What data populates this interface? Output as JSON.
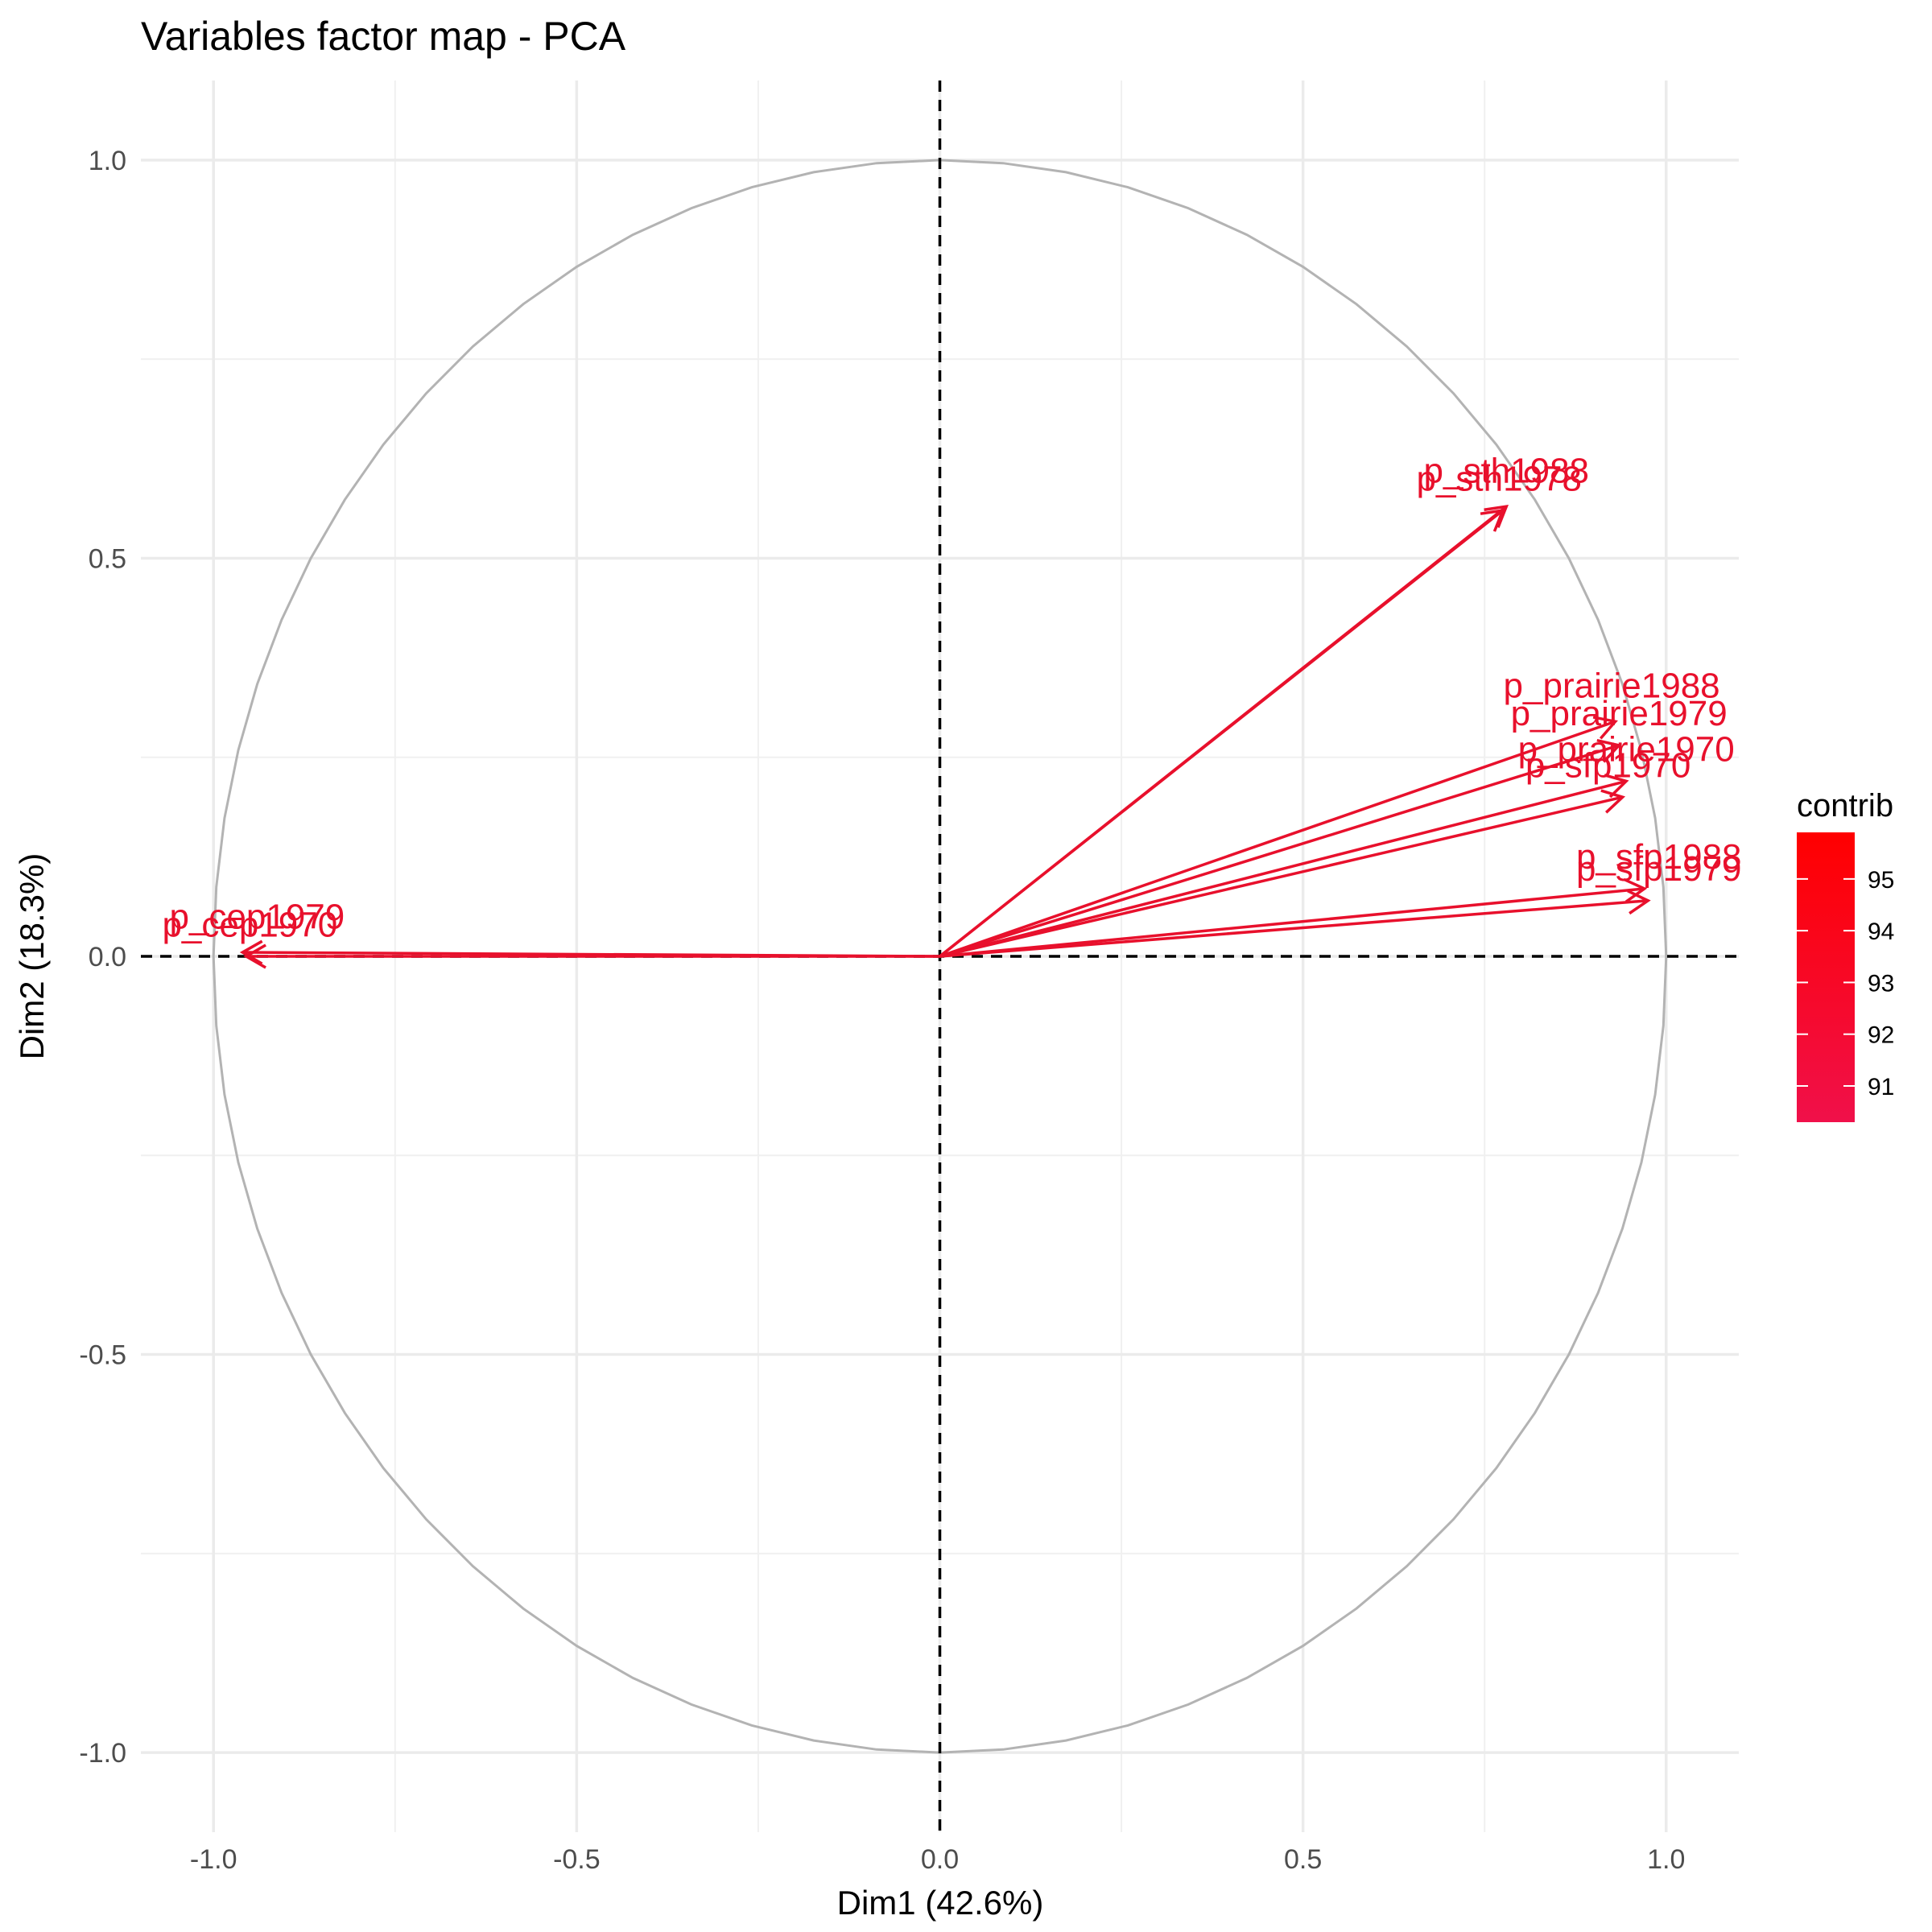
{
  "chart_data": {
    "type": "scatter",
    "title": "Variables factor map - PCA",
    "xlabel": "Dim1 (42.6%)",
    "ylabel": "Dim2 (18.3%)",
    "xlim": [
      -1.1,
      1.1
    ],
    "ylim": [
      -1.1,
      1.1
    ],
    "x_ticks": [
      -1.0,
      -0.5,
      0.0,
      0.5,
      1.0
    ],
    "y_ticks": [
      -1.0,
      -0.5,
      0.0,
      0.5,
      1.0
    ],
    "x_tick_labels": [
      "-1.0",
      "-0.5",
      "0.0",
      "0.5",
      "1.0"
    ],
    "y_tick_labels": [
      "-1.0",
      "-0.5",
      "0.0",
      "0.5",
      "1.0"
    ],
    "grid": true,
    "correlation_circle": true,
    "reference_lines": [
      "x=0",
      "y=0"
    ],
    "variables": [
      {
        "name": "p_sth1988",
        "x": 0.78,
        "y": 0.565,
        "contrib": 95.5,
        "color": "#e8102c"
      },
      {
        "name": "p_sth1978",
        "x": 0.775,
        "y": 0.56,
        "contrib": 93.5,
        "color": "#e8102c"
      },
      {
        "name": "p_prairie1988",
        "x": 0.93,
        "y": 0.295,
        "contrib": 95.0,
        "color": "#e8102c"
      },
      {
        "name": "p_prairie1979",
        "x": 0.935,
        "y": 0.265,
        "contrib": 94.0,
        "color": "#e8102c"
      },
      {
        "name": "p_prairie1970",
        "x": 0.945,
        "y": 0.22,
        "contrib": 93.5,
        "color": "#e8102c"
      },
      {
        "name": "p_sfp1970",
        "x": 0.94,
        "y": 0.2,
        "contrib": 92.5,
        "color": "#e8102c"
      },
      {
        "name": "p_sfp1988",
        "x": 0.97,
        "y": 0.085,
        "contrib": 95.5,
        "color": "#e8102c"
      },
      {
        "name": "p_sfp1979",
        "x": 0.975,
        "y": 0.07,
        "contrib": 95.0,
        "color": "#e8102c"
      },
      {
        "name": "p_cep1979",
        "x": -0.96,
        "y": 0.005,
        "contrib": 94.0,
        "color": "#e8102c"
      },
      {
        "name": "p_cep1970",
        "x": -0.955,
        "y": 0.0,
        "contrib": 93.0,
        "color": "#e8102c"
      }
    ],
    "label_texts": [
      {
        "var": "p_sth1988",
        "text": "p_sth1988",
        "lx": 0.78,
        "ly": 0.595
      },
      {
        "var": "p_sth1978",
        "text": "p_sth1978",
        "lx": 0.77,
        "ly": 0.585
      },
      {
        "var": "p_prairie1988",
        "text": "p_prairie1988",
        "lx": 0.925,
        "ly": 0.325
      },
      {
        "var": "p_prairie1979",
        "text": "p_prairie1979",
        "lx": 0.935,
        "ly": 0.29
      },
      {
        "var": "p_prairie1970",
        "text": "p_prairie1970",
        "lx": 0.945,
        "ly": 0.245
      },
      {
        "var": "p_sfp1970",
        "text": "p_sfp1970",
        "lx": 0.92,
        "ly": 0.225
      },
      {
        "var": "p_sfp1988",
        "text": "p_sfp1988",
        "lx": 0.99,
        "ly": 0.11
      },
      {
        "var": "p_sfp1979",
        "text": "p_sfp1979",
        "lx": 0.99,
        "ly": 0.095
      },
      {
        "var": "p_cep1979",
        "text": "p_cep1979",
        "lx": -0.94,
        "ly": 0.035
      },
      {
        "var": "p_cep1970",
        "text": "p_cep1970",
        "lx": -0.95,
        "ly": 0.025
      }
    ],
    "legend": {
      "title": "contrib",
      "placement": "right",
      "min": 90.3,
      "max": 95.9,
      "breaks": [
        91,
        92,
        93,
        94,
        95
      ],
      "break_labels": [
        "91",
        "92",
        "93",
        "94",
        "95"
      ],
      "color_low": "#f0104a",
      "color_high": "#ff0000"
    }
  }
}
